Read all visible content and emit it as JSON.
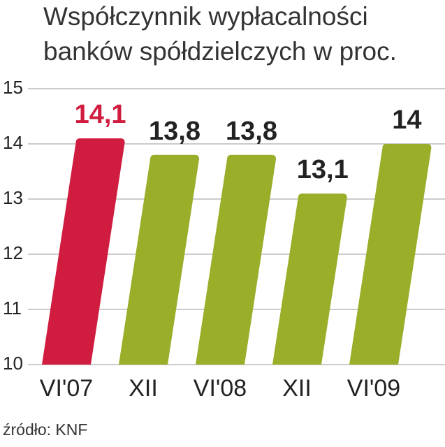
{
  "chart_data": {
    "type": "bar",
    "title": "Współczynnik wypłacalności",
    "subtitle": "banków spółdzielczych w proc.",
    "source": "źródło: KNF",
    "categories": [
      "VI'07",
      "XII",
      "VI'08",
      "XII",
      "VI'09"
    ],
    "values": [
      14.1,
      13.8,
      13.8,
      13.1,
      14
    ],
    "value_labels": [
      "14,1",
      "13,8",
      "13,8",
      "13,1",
      "14"
    ],
    "colors": [
      "#d01c3e",
      "#9aae2a",
      "#9aae2a",
      "#9aae2a",
      "#9aae2a"
    ],
    "ylim": [
      10,
      15
    ],
    "yticks": [
      10,
      11,
      12,
      13,
      14,
      15
    ],
    "grid": true
  }
}
